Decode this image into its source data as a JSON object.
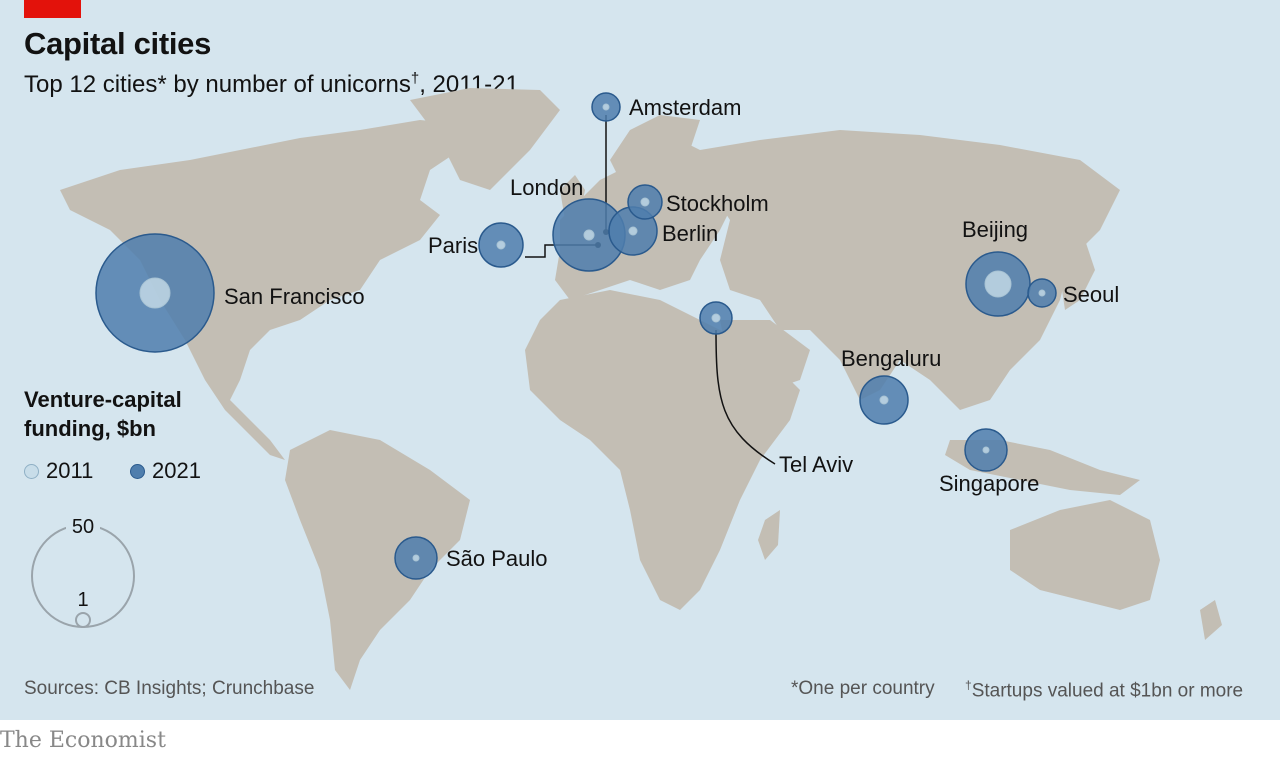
{
  "header": {
    "title": "Capital cities",
    "subtitle_main": "Top 12 cities* by number of unicorns",
    "subtitle_dagger": "†",
    "subtitle_tail": ", 2011-21"
  },
  "legend": {
    "title": "Venture-capital funding, $bn",
    "label_2011": "2011",
    "label_2021": "2021",
    "scale_max_label": "50",
    "scale_min_label": "1"
  },
  "cities": [
    {
      "name": "San Francisco"
    },
    {
      "name": "London"
    },
    {
      "name": "Paris"
    },
    {
      "name": "Amsterdam"
    },
    {
      "name": "Stockholm"
    },
    {
      "name": "Berlin"
    },
    {
      "name": "Tel Aviv"
    },
    {
      "name": "Beijing"
    },
    {
      "name": "Seoul"
    },
    {
      "name": "Bengaluru"
    },
    {
      "name": "Singapore"
    },
    {
      "name": "São Paulo"
    }
  ],
  "footer": {
    "sources": "Sources: CB Insights; Crunchbase",
    "note_one": "*One per country",
    "note_dagger": "†",
    "note_two": "Startups valued at $1bn or more"
  },
  "brand": "The Economist",
  "colors": {
    "background": "#d5e5ee",
    "land": "#c3beb4",
    "bubble_2021": "#4f7ead",
    "bubble_2011": "#c8dde9",
    "accent": "#e3120b"
  }
}
